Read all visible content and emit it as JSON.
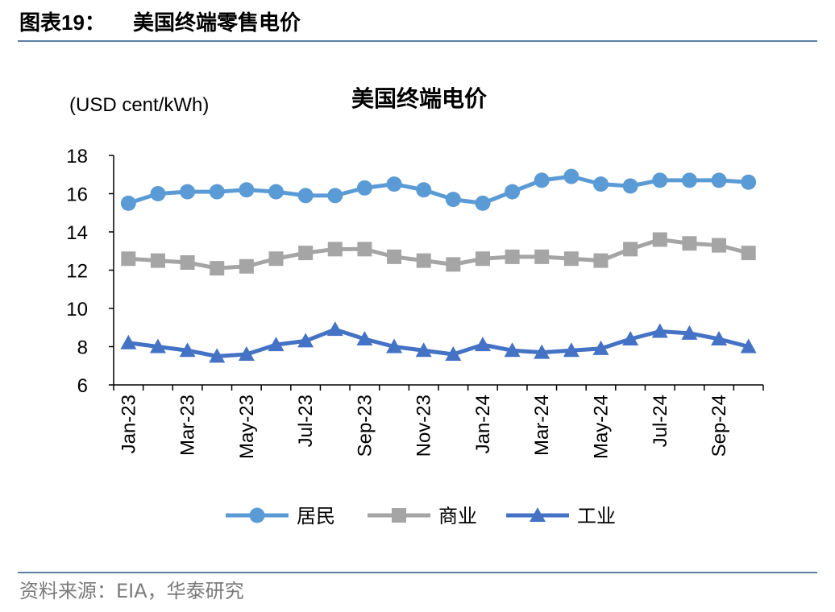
{
  "header": {
    "figure_label": "图表",
    "figure_number": "19：",
    "title": "美国终端零售电价"
  },
  "footer": {
    "source": "资料来源：EIA，华泰研究"
  },
  "chart_data": {
    "type": "line",
    "title": "美国终端电价",
    "unit_label": "(USD cent/kWh)",
    "ylim": [
      6,
      18
    ],
    "yticks": [
      6,
      8,
      10,
      12,
      14,
      16,
      18
    ],
    "x": [
      "Jan-23",
      "Feb-23",
      "Mar-23",
      "Apr-23",
      "May-23",
      "Jun-23",
      "Jul-23",
      "Aug-23",
      "Sep-23",
      "Oct-23",
      "Nov-23",
      "Dec-23",
      "Jan-24",
      "Feb-24",
      "Mar-24",
      "Apr-24",
      "May-24",
      "Jun-24",
      "Jul-24",
      "Aug-24",
      "Sep-24",
      "Oct-24"
    ],
    "xtick_labels": [
      "Jan-23",
      "Mar-23",
      "May-23",
      "Jul-23",
      "Sep-23",
      "Nov-23",
      "Jan-24",
      "Mar-24",
      "May-24",
      "Jul-24",
      "Sep-24"
    ],
    "grid": false,
    "legend_position": "bottom",
    "series": [
      {
        "name": "居民",
        "marker": "circle",
        "color": "#5b9bd5",
        "values": [
          15.5,
          16.0,
          16.1,
          16.1,
          16.2,
          16.1,
          15.9,
          15.9,
          16.3,
          16.5,
          16.2,
          15.7,
          15.5,
          16.1,
          16.7,
          16.9,
          16.5,
          16.4,
          16.7,
          16.7,
          16.7,
          16.6
        ]
      },
      {
        "name": "商业",
        "marker": "square",
        "color": "#a5a5a5",
        "values": [
          12.6,
          12.5,
          12.4,
          12.1,
          12.2,
          12.6,
          12.9,
          13.1,
          13.1,
          12.7,
          12.5,
          12.3,
          12.6,
          12.7,
          12.7,
          12.6,
          12.5,
          13.1,
          13.6,
          13.4,
          13.3,
          12.9
        ]
      },
      {
        "name": "工业",
        "marker": "triangle",
        "color": "#4472c4",
        "values": [
          8.2,
          8.0,
          7.8,
          7.5,
          7.6,
          8.1,
          8.3,
          8.9,
          8.4,
          8.0,
          7.8,
          7.6,
          8.1,
          7.8,
          7.7,
          7.8,
          7.9,
          8.4,
          8.8,
          8.7,
          8.4,
          8.0
        ]
      }
    ]
  }
}
